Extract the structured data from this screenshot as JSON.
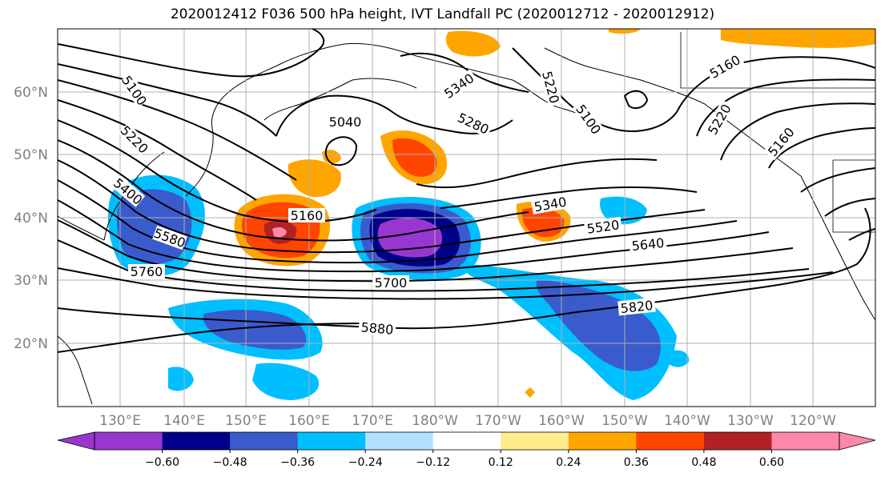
{
  "title": "2020012412 F036 500 hPa height, IVT Landfall PC (2020012712 - 2020012912)",
  "lat_labels": [
    "60°N",
    "50°N",
    "40°N",
    "30°N",
    "20°N"
  ],
  "lon_labels": [
    "130°E",
    "140°E",
    "150°E",
    "160°E",
    "170°E",
    "180°W",
    "170°W",
    "160°W",
    "150°W",
    "140°W",
    "130°W",
    "120°W"
  ],
  "contour_labels": [
    "5100",
    "5220",
    "5400",
    "5580",
    "5760",
    "5160",
    "5040",
    "5340",
    "5280",
    "5220",
    "5100",
    "5160",
    "5220",
    "5160",
    "5340",
    "5520",
    "5640",
    "5700",
    "5820",
    "5880"
  ],
  "colorbar": {
    "ticks": [
      "−0.60",
      "−0.48",
      "−0.36",
      "−0.24",
      "−0.12",
      "0.12",
      "0.24",
      "0.36",
      "0.48",
      "0.60"
    ],
    "colors": [
      "#9a36d0",
      "#00008b",
      "#3a5bcc",
      "#00bfff",
      "#b0e2ff",
      "#ffffff",
      "#ffec8b",
      "#ffa500",
      "#ff4500",
      "#b22222",
      "#ff88aa"
    ]
  }
}
